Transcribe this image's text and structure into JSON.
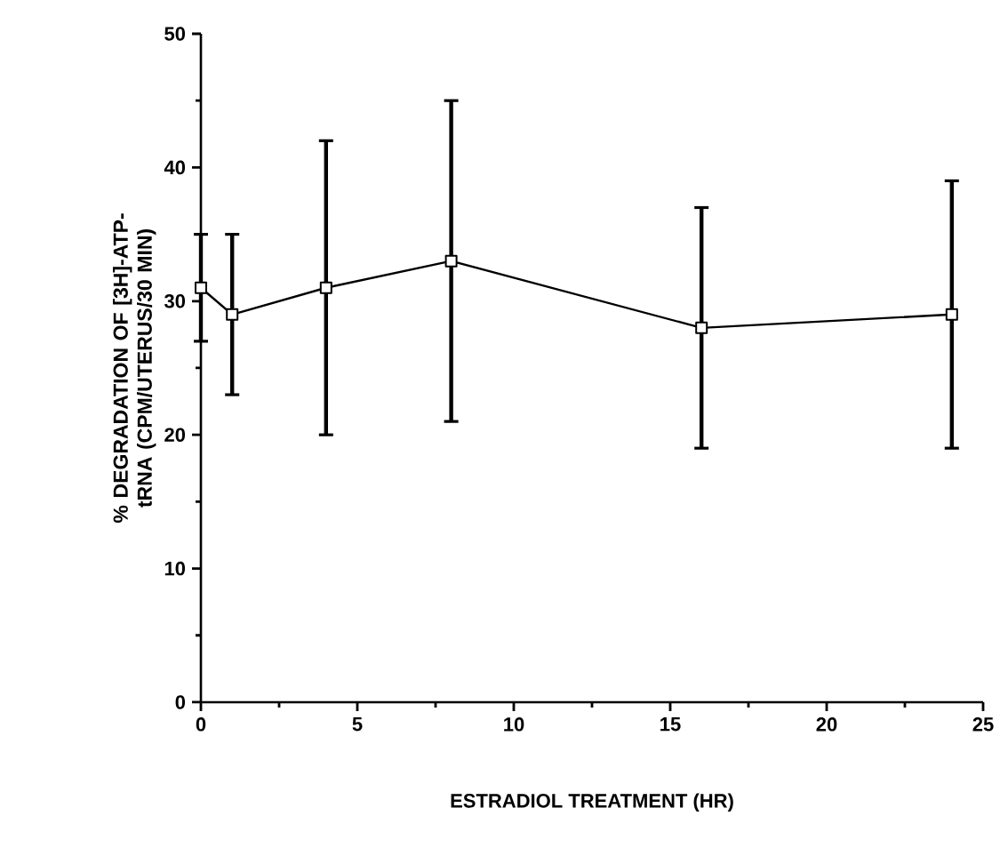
{
  "chart_data": {
    "type": "line",
    "xlabel": "ESTRADIOL TREATMENT (HR)",
    "ylabel": "% DEGRADATION OF [3H]-ATP-tRNA (CPM/UTERUS/30 MIN)",
    "x": [
      0,
      1,
      4,
      8,
      16,
      24
    ],
    "series": [
      {
        "color": "#000000",
        "values": [
          31,
          29,
          31,
          33,
          28,
          29
        ],
        "errors": [
          [
            27,
            35
          ],
          [
            23,
            35
          ],
          [
            20,
            42
          ],
          [
            21,
            45
          ],
          [
            19,
            37
          ],
          [
            19,
            39
          ]
        ]
      }
    ],
    "xlim": [
      0,
      25
    ],
    "xticks": [
      0,
      5,
      10,
      15,
      20,
      25
    ],
    "ylim": [
      0,
      50
    ],
    "yticks": [
      0,
      10,
      20,
      30,
      40,
      50
    ],
    "marker": "square",
    "line_style": "solid",
    "grid": false,
    "legend": false
  }
}
